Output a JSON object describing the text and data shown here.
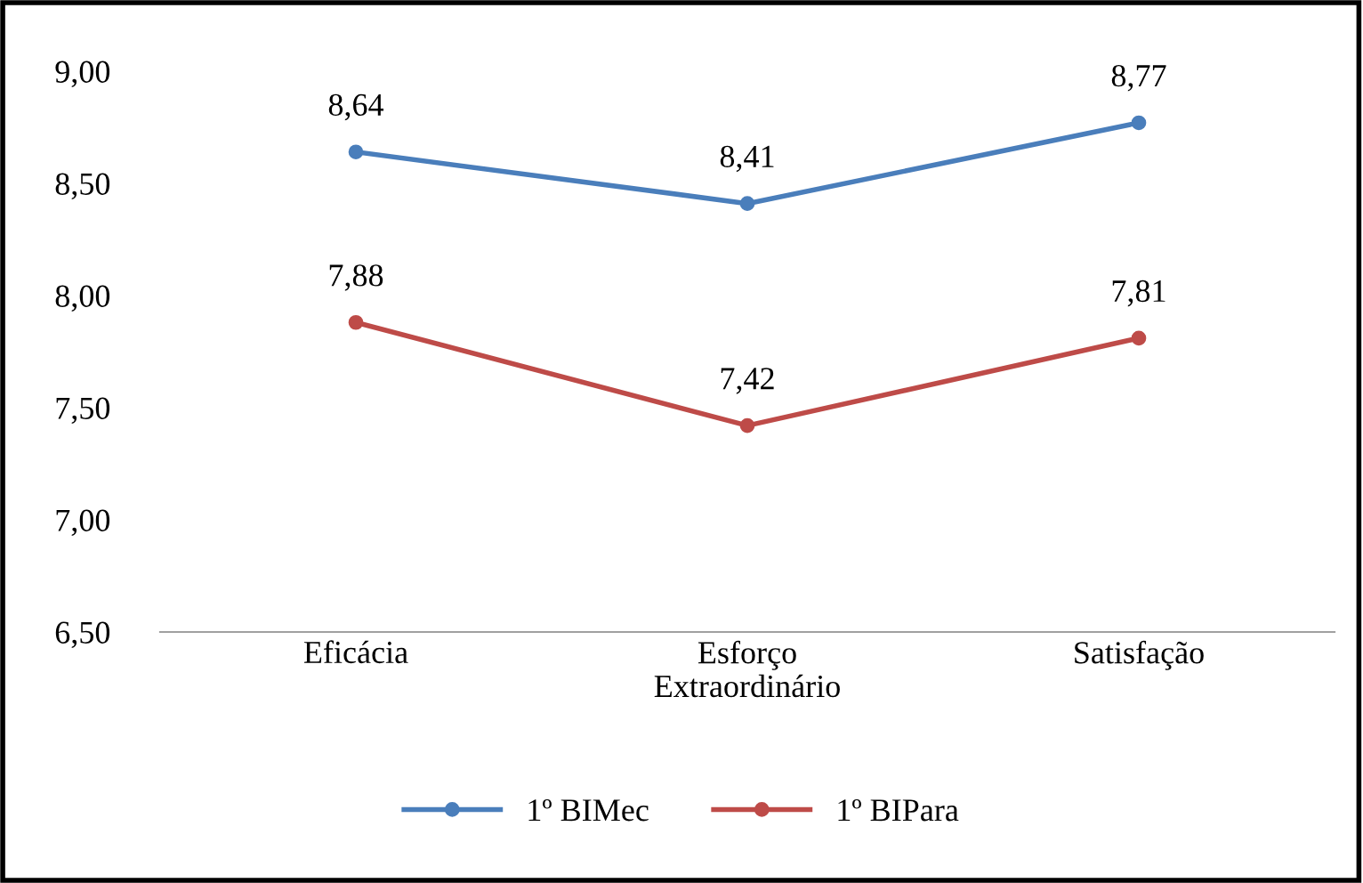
{
  "chart_data": {
    "type": "line",
    "categories": [
      "Eficácia",
      "Esforço\nExtraordinário",
      "Satisfação"
    ],
    "series": [
      {
        "name": "1º BIMec",
        "color": "#4a7ebb",
        "values": [
          8.64,
          8.41,
          8.77
        ],
        "value_labels": [
          "8,64",
          "8,41",
          "8,77"
        ]
      },
      {
        "name": "1º BIPara",
        "color": "#be4b48",
        "values": [
          7.88,
          7.42,
          7.81
        ],
        "value_labels": [
          "7,88",
          "7,42",
          "7,81"
        ]
      }
    ],
    "ylim": [
      6.5,
      9.0
    ],
    "yticks": [
      {
        "value": 6.5,
        "label": "6,50"
      },
      {
        "value": 7.0,
        "label": "7,00"
      },
      {
        "value": 7.5,
        "label": "7,50"
      },
      {
        "value": 8.0,
        "label": "8,00"
      },
      {
        "value": 8.5,
        "label": "8,50"
      },
      {
        "value": 9.0,
        "label": "9,00"
      }
    ],
    "grid": false,
    "legend": "bottom",
    "marker": "circle",
    "line_style": "solid"
  }
}
